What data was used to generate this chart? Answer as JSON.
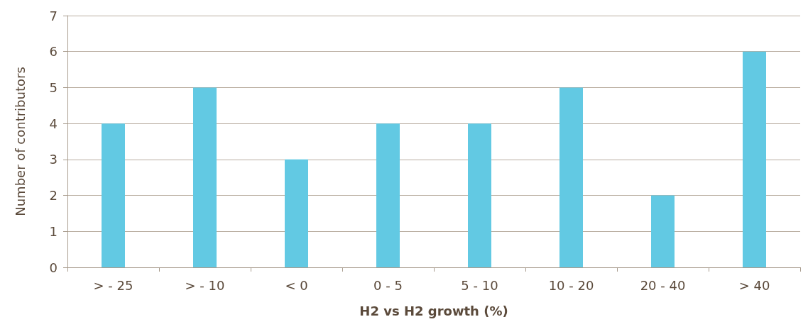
{
  "chart_data": {
    "type": "bar",
    "xlabel": "H2 vs H2 growth (%)",
    "ylabel": "Number of contributors",
    "categories": [
      "> - 25",
      "> - 10",
      "< 0",
      "0 - 5",
      "5 - 10",
      "10 - 20",
      "20 - 40",
      "> 40"
    ],
    "values": [
      4,
      5,
      3,
      4,
      4,
      5,
      2,
      6
    ],
    "color": "#62c9e3",
    "ylim": [
      0,
      7
    ],
    "yticks": [
      0,
      1,
      2,
      3,
      4,
      5,
      6,
      7
    ],
    "grid": "y"
  }
}
